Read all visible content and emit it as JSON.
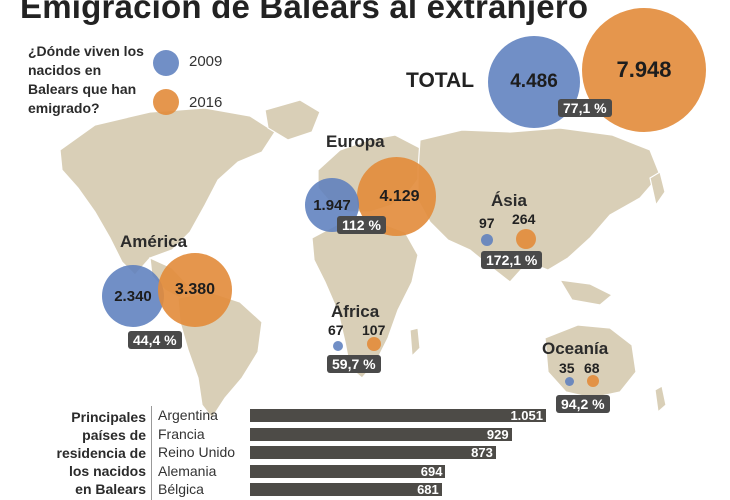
{
  "title": "Emigración de Balears al extranjero",
  "legend": {
    "question": "¿Dónde viven los nacidos en Balears que han emigrado?",
    "y2009": "2009",
    "y2016": "2016"
  },
  "colors": {
    "c2009": "#5d80be",
    "c2016": "#e28b3a",
    "map": "#d9cfb7",
    "bar": "#4d4b47"
  },
  "total": {
    "label": "TOTAL",
    "v2009": "4.486",
    "v2016": "7.948",
    "change": "77,1 %"
  },
  "chart_data": {
    "type": "bubble-map",
    "title": "Emigración de Balears al extranjero",
    "series_names": [
      "2009",
      "2016"
    ],
    "regions": [
      {
        "name": "Europa",
        "v2009": 1947,
        "v2016": 4129,
        "label2009": "1.947",
        "label2016": "4.129",
        "change": "112 %"
      },
      {
        "name": "América",
        "v2009": 2340,
        "v2016": 3380,
        "label2009": "2.340",
        "label2016": "3.380",
        "change": "44,4 %"
      },
      {
        "name": "Ásia",
        "v2009": 97,
        "v2016": 264,
        "label2009": "97",
        "label2016": "264",
        "change": "172,1 %"
      },
      {
        "name": "África",
        "v2009": 67,
        "v2016": 107,
        "label2009": "67",
        "label2016": "107",
        "change": "59,7 %"
      },
      {
        "name": "Oceanía",
        "v2009": 35,
        "v2016": 68,
        "label2009": "35",
        "label2016": "68",
        "change": "94,2 %"
      }
    ],
    "bar_chart": {
      "type": "bar",
      "title": "Principales países de residencia de los nacidos en Balears",
      "categories": [
        "Argentina",
        "Francia",
        "Reino Unido",
        "Alemania",
        "Bélgica"
      ],
      "values": [
        1051,
        929,
        873,
        694,
        681
      ],
      "value_labels": [
        "1.051",
        "929",
        "873",
        "694",
        "681"
      ]
    }
  }
}
